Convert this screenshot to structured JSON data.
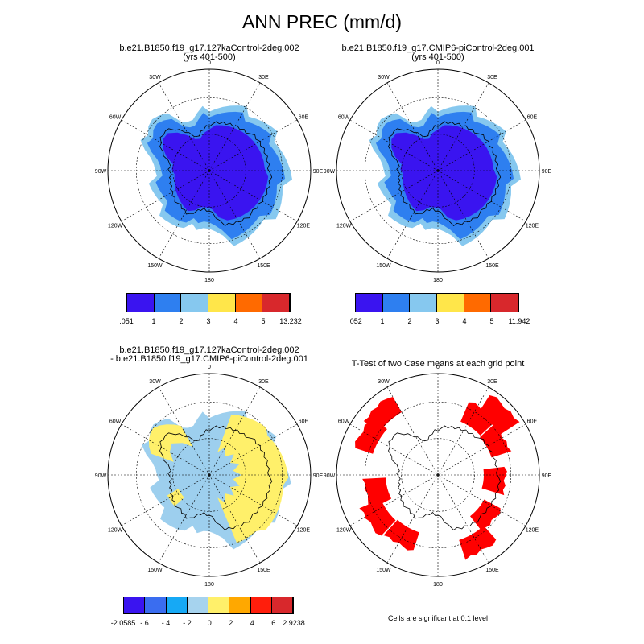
{
  "title": "ANN PREC (mm/d)",
  "panels": {
    "p1": {
      "title_line1": "b.e21.B1850.f19_g17.127kaControl-2deg.002",
      "title_line2": "(yrs 401-500)"
    },
    "p2": {
      "title_line1": "b.e21.B1850.f19_g17.CMIP6-piControl-2deg.001",
      "title_line2": "(yrs 401-500)"
    },
    "p3": {
      "title_line1": "b.e21.B1850.f19_g17.127kaControl-2deg.002",
      "title_line2": "- b.e21.B1850.f19_g17.CMIP6-piControl-2deg.001"
    },
    "p4": {
      "title_line1": "T-Test of two Case means at each grid point",
      "footer": "Cells are significant at 0.1 level"
    }
  },
  "lon_labels": [
    "0",
    "30E",
    "60E",
    "90E",
    "120E",
    "150E",
    "180",
    "150W",
    "120W",
    "90W",
    "60W",
    "30W"
  ],
  "colorbars": {
    "cb1": {
      "colors": [
        "#3a14f0",
        "#2e7ff0",
        "#86c8ef",
        "#ffe64a",
        "#ff6a00",
        "#d8282c"
      ],
      "labels": [
        ".051",
        "1",
        "2",
        "3",
        "4",
        "5",
        "13.232"
      ]
    },
    "cb2": {
      "colors": [
        "#3a14f0",
        "#2e7ff0",
        "#86c8ef",
        "#ffe64a",
        "#ff6a00",
        "#d8282c"
      ],
      "labels": [
        ".052",
        "1",
        "2",
        "3",
        "4",
        "5",
        "11.942"
      ]
    },
    "cb3": {
      "colors": [
        "#3a14f0",
        "#3a6df0",
        "#16a9f5",
        "#a6d3ee",
        "#fff06a",
        "#ffa800",
        "#ff1e0c",
        "#d8282c"
      ],
      "labels": [
        "-2.0585",
        "-.6",
        "-.4",
        "-.2",
        ".0",
        ".2",
        ".4",
        ".6",
        "2.9238"
      ]
    }
  },
  "colors": {
    "dark_blue": "#3a14f0",
    "mid_blue": "#2e7ff0",
    "light_blue": "#86c8ef",
    "diff_blue": "#9dcfee",
    "diff_yellow": "#fff06a",
    "significant_red": "#ff0000"
  }
}
